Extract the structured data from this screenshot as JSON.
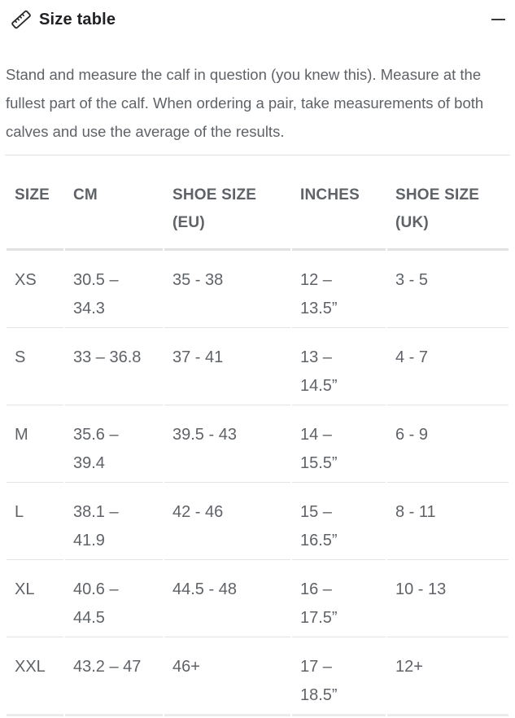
{
  "panel": {
    "title": "Size table",
    "icons": {
      "header": "ruler-icon",
      "collapse": "minus-icon"
    },
    "description": "Stand and measure the calf in question (you knew this). Measure at the fullest part of the calf. When ordering a pair, take measurements of both calves and use the average of the results."
  },
  "table": {
    "columns": [
      "SIZE",
      "CM",
      "SHOE SIZE (EU)",
      "INCHES",
      "SHOE SIZE (UK)"
    ],
    "rows": [
      [
        "XS",
        "30.5 – 34.3",
        "35 - 38",
        "12 – 13.5”",
        "3 - 5"
      ],
      [
        "S",
        "33 – 36.8",
        "37 - 41",
        "13 – 14.5”",
        "4 - 7"
      ],
      [
        "M",
        "35.6 – 39.4",
        "39.5 - 43",
        "14 – 15.5”",
        "6 - 9"
      ],
      [
        "L",
        "38.1 – 41.9",
        "42 - 46",
        "15 – 16.5”",
        "8 - 11"
      ],
      [
        "XL",
        "40.6 – 44.5",
        "44.5 - 48",
        "16 – 17.5”",
        "10 - 13"
      ],
      [
        "XXL",
        "43.2 – 47",
        "46+",
        "17 – 18.5”",
        "12+"
      ]
    ]
  },
  "colors": {
    "background": "#ffffff",
    "title_text": "#202124",
    "body_text": "#5f6368",
    "divider": "#e1e1e1",
    "header_rule": "#e2e2e2",
    "row_rule": "#e4e4e4",
    "icon": "#2a2a2a"
  }
}
